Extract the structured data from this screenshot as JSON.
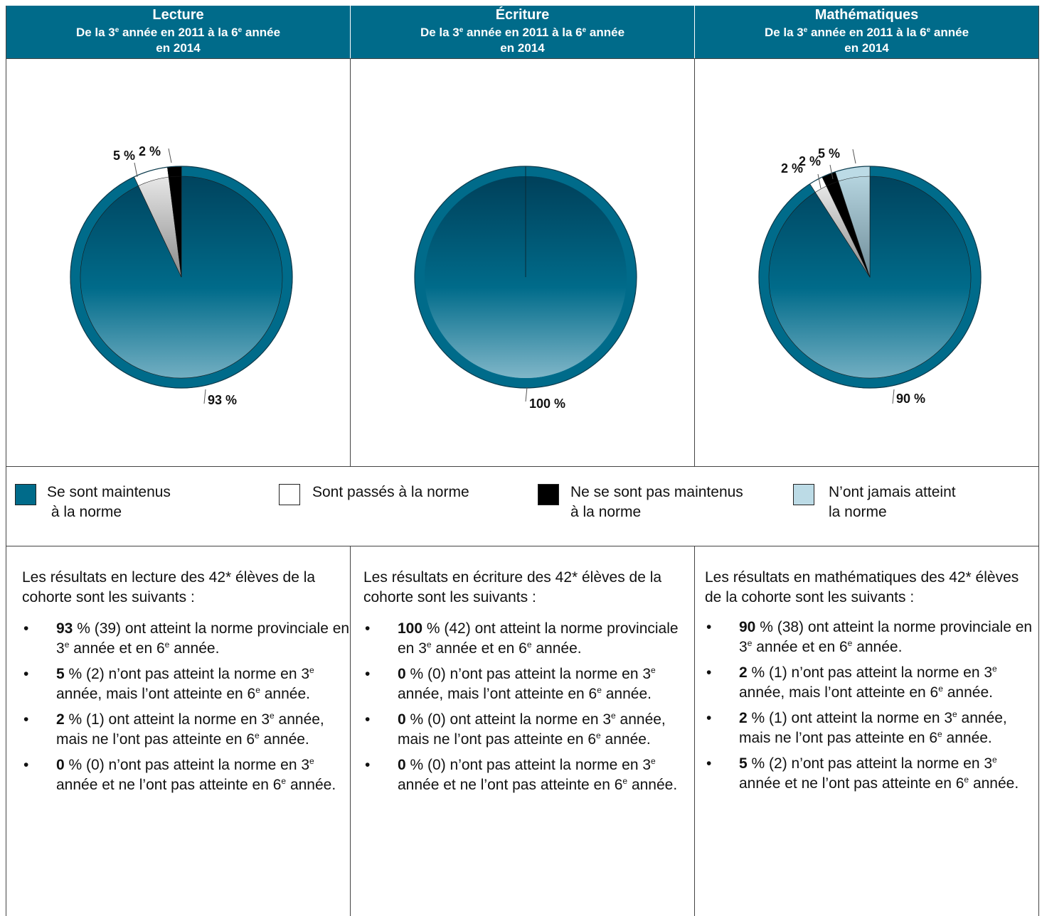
{
  "headers": [
    {
      "title": "Lecture",
      "line1": "De la 3",
      "sup1": "e",
      "mid": " année en 2011 à la 6",
      "sup2": "e",
      "end": " année",
      "line2": "en 2014"
    },
    {
      "title": "Écriture",
      "line1": "De la 3",
      "sup1": "e",
      "mid": " année en 2011 à la 6",
      "sup2": "e",
      "end": " année",
      "line2": "en 2014"
    },
    {
      "title": "Mathématiques",
      "line1": "De la 3",
      "sup1": "e",
      "mid": " année en 2011 à la 6",
      "sup2": "e",
      "end": " année",
      "line2": "en 2014"
    }
  ],
  "colors": {
    "header_bg": "#006b8a",
    "maintained": "#006b8a",
    "passed": "#ffffff",
    "not_maintained": "#000000",
    "never": "#bcdbe6"
  },
  "chart_data": [
    {
      "type": "pie",
      "title": "Lecture",
      "categories": [
        "Se sont maintenus à la norme",
        "Sont passés à la norme",
        "Ne se sont pas maintenus à la norme",
        "N’ont jamais atteint la norme"
      ],
      "values": [
        93,
        5,
        2,
        0
      ],
      "labels": [
        "93 %",
        "5 %",
        "2 %",
        ""
      ]
    },
    {
      "type": "pie",
      "title": "Écriture",
      "categories": [
        "Se sont maintenus à la norme",
        "Sont passés à la norme",
        "Ne se sont pas maintenus à la norme",
        "N’ont jamais atteint la norme"
      ],
      "values": [
        100,
        0,
        0,
        0
      ],
      "labels": [
        "100 %",
        "",
        "",
        ""
      ]
    },
    {
      "type": "pie",
      "title": "Mathématiques",
      "categories": [
        "Se sont maintenus à la norme",
        "Sont passés à la norme",
        "Ne se sont pas maintenus à la norme",
        "N’ont jamais atteint la norme"
      ],
      "values": [
        90,
        2,
        2,
        5
      ],
      "labels": [
        "90 %",
        "2 %",
        "2 %",
        "5 %"
      ]
    }
  ],
  "legend": [
    {
      "line1": "Se sont maintenus",
      "line2": " à la norme"
    },
    {
      "line1": "Sont passés à la norme",
      "line2": ""
    },
    {
      "line1": "Ne se sont pas maintenus",
      "line2": "à la norme"
    },
    {
      "line1": "N’ont jamais atteint",
      "line2": "la norme"
    }
  ],
  "summaries": [
    {
      "intro": "Les résultats en lecture des 42* élèves de la cohorte sont les suivants :",
      "bullets": [
        {
          "bold": "93",
          "rest": " % (39) ont atteint la norme provinciale en 3",
          "s1": "e",
          "r2": " année et en 6",
          "s2": "e",
          "r3": " année."
        },
        {
          "bold": "5",
          "rest": " % (2) n’ont pas atteint la norme en 3",
          "s1": "e",
          "r2": " année, mais l’ont atteinte en 6",
          "s2": "e",
          "r3": " année."
        },
        {
          "bold": "2",
          "rest": " % (1) ont atteint la norme en 3",
          "s1": "e",
          "r2": " année, mais ne l’ont pas atteinte en 6",
          "s2": "e",
          "r3": " année."
        },
        {
          "bold": "0",
          "rest": " % (0) n’ont pas atteint la norme en 3",
          "s1": "e",
          "r2": " année et ne l’ont pas atteinte en 6",
          "s2": "e",
          "r3": " année."
        }
      ]
    },
    {
      "intro": "Les résultats en écriture des 42* élèves de la cohorte sont les suivants :",
      "bullets": [
        {
          "bold": "100",
          "rest": " % (42) ont atteint la norme provinciale en 3",
          "s1": "e",
          "r2": " année et en 6",
          "s2": "e",
          "r3": " année."
        },
        {
          "bold": "0",
          "rest": " % (0) n’ont pas atteint la norme en 3",
          "s1": "e",
          "r2": " année, mais l’ont atteinte en 6",
          "s2": "e",
          "r3": " année."
        },
        {
          "bold": "0",
          "rest": " % (0) ont atteint la norme en 3",
          "s1": "e",
          "r2": " année, mais ne l’ont pas atteinte en 6",
          "s2": "e",
          "r3": " année."
        },
        {
          "bold": "0",
          "rest": " % (0) n’ont pas atteint la norme en 3",
          "s1": "e",
          "r2": " année et ne l’ont pas atteinte en 6",
          "s2": "e",
          "r3": " année."
        }
      ]
    },
    {
      "intro": "Les résultats en mathématiques des 42* élèves de la cohorte sont les suivants :",
      "bullets": [
        {
          "bold": "90",
          "rest": " % (38) ont atteint la norme provinciale en 3",
          "s1": "e",
          "r2": " année et en 6",
          "s2": "e",
          "r3": " année."
        },
        {
          "bold": "2",
          "rest": " % (1) n’ont pas atteint la norme en 3",
          "s1": "e",
          "r2": " année, mais l’ont atteinte en 6",
          "s2": "e",
          "r3": " année."
        },
        {
          "bold": "2",
          "rest": " % (1) ont atteint la norme en 3",
          "s1": "e",
          "r2": " année, mais ne l’ont pas atteinte en 6",
          "s2": "e",
          "r3": " année."
        },
        {
          "bold": "5",
          "rest": " % (2) n’ont pas atteint la norme en 3",
          "s1": "e",
          "r2": " année et ne l’ont pas atteinte en 6",
          "s2": "e",
          "r3": " année."
        }
      ]
    }
  ]
}
